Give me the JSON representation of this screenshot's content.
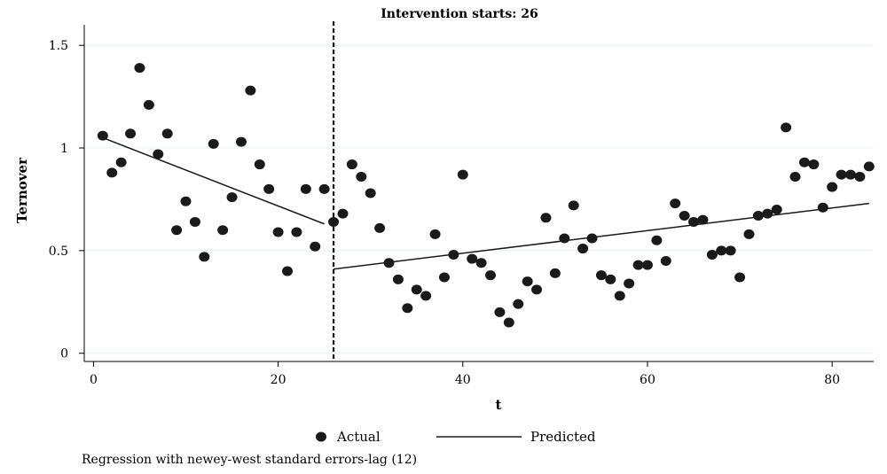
{
  "chart_data": {
    "type": "scatter",
    "title": "Intervention starts: 26",
    "xlabel": "t",
    "ylabel": "Ternover",
    "xlim": [
      -1,
      84.5
    ],
    "ylim": [
      -0.04,
      1.6
    ],
    "x_ticks": [
      0,
      20,
      40,
      60,
      80
    ],
    "y_ticks": [
      0,
      0.5,
      1,
      1.5
    ],
    "y_tick_labels": [
      "0",
      "0.5",
      "1",
      "1.5"
    ],
    "grid": true,
    "intervention_x": 26,
    "series": [
      {
        "name": "Actual",
        "kind": "scatter",
        "x": [
          1,
          2,
          3,
          4,
          5,
          6,
          7,
          8,
          9,
          10,
          11,
          12,
          13,
          14,
          15,
          16,
          17,
          18,
          19,
          20,
          21,
          22,
          23,
          24,
          25,
          26,
          27,
          28,
          29,
          30,
          31,
          32,
          33,
          34,
          35,
          36,
          37,
          38,
          39,
          40,
          41,
          42,
          43,
          44,
          45,
          46,
          47,
          48,
          49,
          50,
          51,
          52,
          53,
          54,
          55,
          56,
          57,
          58,
          59,
          60,
          61,
          62,
          63,
          64,
          65,
          66,
          67,
          68,
          69,
          70,
          71,
          72,
          73,
          74,
          75,
          76,
          77,
          78,
          79,
          80,
          81,
          82,
          83,
          84
        ],
        "y": [
          1.06,
          0.88,
          0.93,
          1.07,
          1.39,
          1.21,
          0.97,
          1.07,
          0.6,
          0.74,
          0.64,
          0.47,
          1.02,
          0.6,
          0.76,
          1.03,
          1.28,
          0.92,
          0.8,
          0.59,
          0.4,
          0.59,
          0.8,
          0.52,
          0.8,
          0.64,
          0.68,
          0.92,
          0.86,
          0.78,
          0.61,
          0.44,
          0.36,
          0.22,
          0.31,
          0.28,
          0.58,
          0.37,
          0.48,
          0.87,
          0.46,
          0.44,
          0.38,
          0.2,
          0.15,
          0.24,
          0.35,
          0.31,
          0.66,
          0.39,
          0.56,
          0.72,
          0.51,
          0.56,
          0.38,
          0.36,
          0.28,
          0.34,
          0.43,
          0.43,
          0.55,
          0.45,
          0.73,
          0.67,
          0.64,
          0.65,
          0.48,
          0.5,
          0.5,
          0.37,
          0.58,
          0.67,
          0.68,
          0.7,
          1.1,
          0.86,
          0.93,
          0.92,
          0.71,
          0.81,
          0.87,
          0.87,
          0.86,
          0.91
        ]
      },
      {
        "name": "Predicted",
        "kind": "line",
        "segments": [
          {
            "x": [
              1,
              25
            ],
            "y": [
              1.05,
              0.63
            ]
          },
          {
            "x": [
              26,
              84
            ],
            "y": [
              0.41,
              0.73
            ]
          }
        ]
      }
    ],
    "legend": {
      "position": "bottom"
    },
    "note": "Regression with newey-west standard errors-lag (12)",
    "colors": {
      "marker": "#1a1a1a",
      "line": "#1a1a1a",
      "grid": "#e6f0f3",
      "axis": "#000000"
    }
  }
}
